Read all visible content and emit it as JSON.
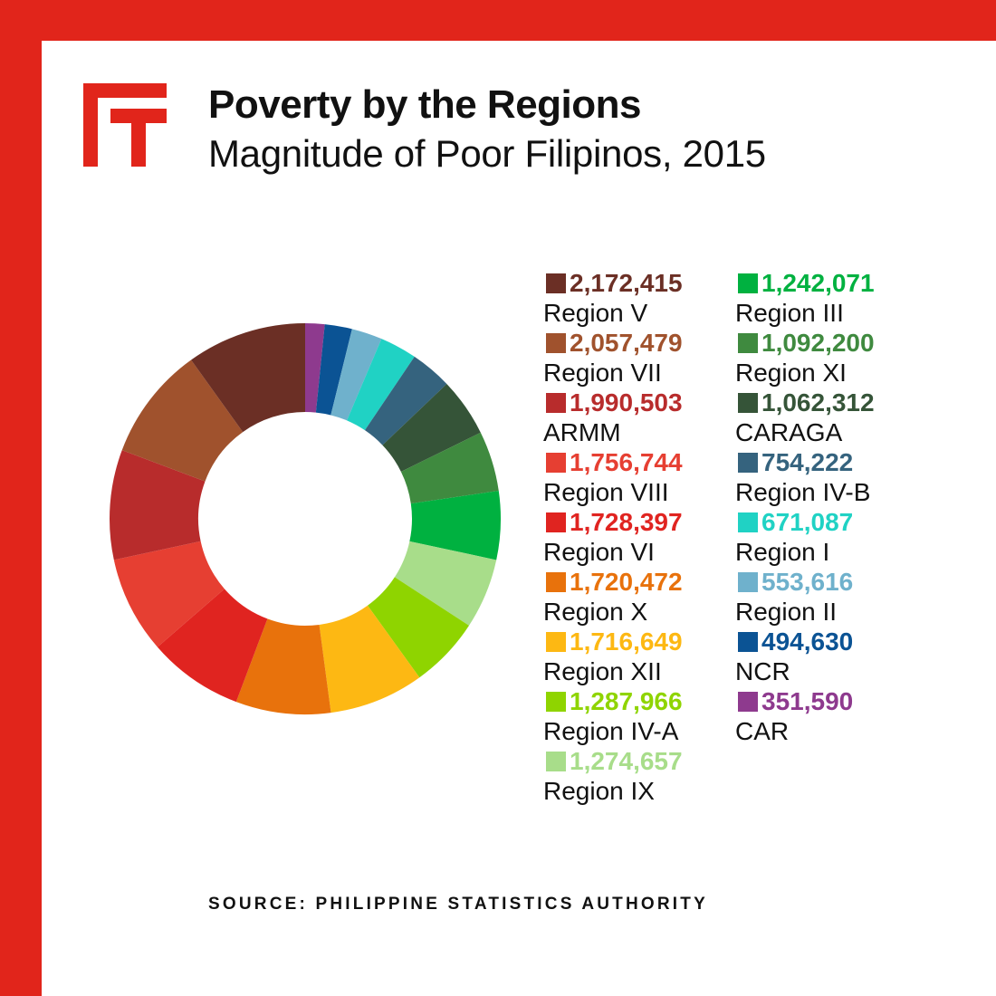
{
  "colors": {
    "frame": "#e1251b",
    "logo": "#e1251b"
  },
  "logo_icon": "ft-logo-icon",
  "title": "Poverty by the Regions",
  "subtitle": "Magnitude of Poor Filipinos, 2015",
  "source": "SOURCE: PHILIPPINE STATISTICS AUTHORITY",
  "chart_data": {
    "type": "pie",
    "donut": true,
    "title": "Poverty by the Regions",
    "subtitle": "Magnitude of Poor Filipinos, 2015",
    "legend_position": "right",
    "series": [
      {
        "name": "Region V",
        "value": 2172415,
        "value_label": "2,172,415",
        "color": "#6b2f25"
      },
      {
        "name": "Region VII",
        "value": 2057479,
        "value_label": "2,057,479",
        "color": "#a0522d"
      },
      {
        "name": "ARMM",
        "value": 1990503,
        "value_label": "1,990,503",
        "color": "#b82c2c"
      },
      {
        "name": "Region VIII",
        "value": 1756744,
        "value_label": "1,756,744",
        "color": "#e63f32"
      },
      {
        "name": "Region VI",
        "value": 1728397,
        "value_label": "1,728,397",
        "color": "#e02420"
      },
      {
        "name": "Region X",
        "value": 1720472,
        "value_label": "1,720,472",
        "color": "#e8720c"
      },
      {
        "name": "Region XII",
        "value": 1716649,
        "value_label": "1,716,649",
        "color": "#fdb813"
      },
      {
        "name": "Region IV-A",
        "value": 1287966,
        "value_label": "1,287,966",
        "color": "#8fd400"
      },
      {
        "name": "Region IX",
        "value": 1274657,
        "value_label": "1,274,657",
        "color": "#a8dd8a"
      },
      {
        "name": "Region III",
        "value": 1242071,
        "value_label": "1,242,071",
        "color": "#00b140"
      },
      {
        "name": "Region XI",
        "value": 1092200,
        "value_label": "1,092,200",
        "color": "#3f8a3f"
      },
      {
        "name": "CARAGA",
        "value": 1062312,
        "value_label": "1,062,312",
        "color": "#355438"
      },
      {
        "name": "Region IV-B",
        "value": 754222,
        "value_label": "754,222",
        "color": "#35637e"
      },
      {
        "name": "Region I",
        "value": 671087,
        "value_label": "671,087",
        "color": "#20d2c4"
      },
      {
        "name": "Region II",
        "value": 553616,
        "value_label": "553,616",
        "color": "#6fb1cc"
      },
      {
        "name": "NCR",
        "value": 494630,
        "value_label": "494,630",
        "color": "#0b5394"
      },
      {
        "name": "CAR",
        "value": 351590,
        "value_label": "351,590",
        "color": "#8e3a8e"
      }
    ],
    "slice_order_clockwise_from_top": [
      "CAR",
      "NCR",
      "Region II",
      "Region I",
      "Region IV-B",
      "CARAGA",
      "Region XI",
      "Region III",
      "Region IX",
      "Region IV-A",
      "Region XII",
      "Region X",
      "Region VI",
      "Region VIII",
      "ARMM",
      "Region VII",
      "Region V"
    ]
  }
}
